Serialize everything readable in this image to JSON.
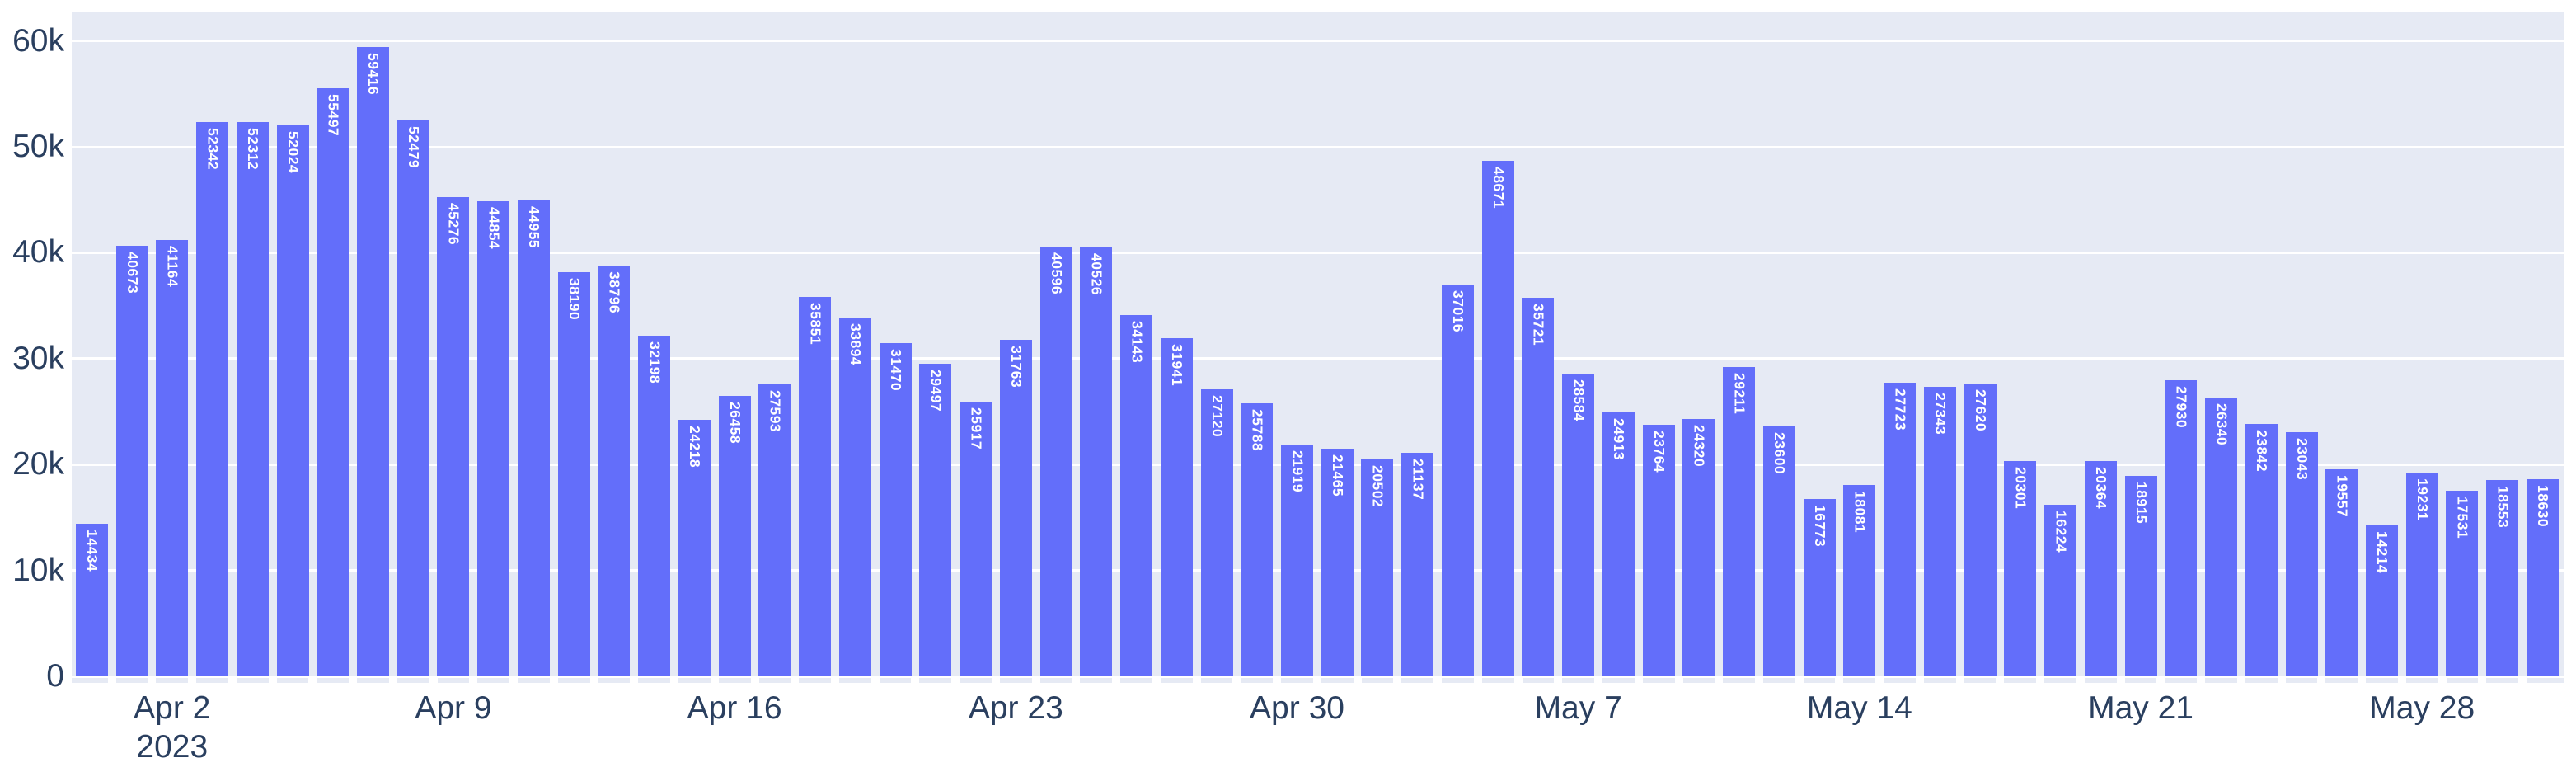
{
  "chart_data": {
    "type": "bar",
    "title": "",
    "xlabel": "",
    "ylabel": "",
    "grid": true,
    "legend": "none",
    "ylim": [
      0,
      62650
    ],
    "colors": {
      "bar_fill": "#636EFA",
      "plot_background": "#E6EAF4",
      "gridline": "#FFFFFF",
      "axis_text": "#2A3F5F",
      "bar_label_text": "#FFFFFF",
      "outer_background": "#FFFFFF"
    },
    "x": [
      "2023-03-31",
      "2023-04-01",
      "2023-04-02",
      "2023-04-03",
      "2023-04-04",
      "2023-04-05",
      "2023-04-06",
      "2023-04-07",
      "2023-04-08",
      "2023-04-09",
      "2023-04-10",
      "2023-04-11",
      "2023-04-12",
      "2023-04-13",
      "2023-04-14",
      "2023-04-15",
      "2023-04-16",
      "2023-04-17",
      "2023-04-18",
      "2023-04-19",
      "2023-04-20",
      "2023-04-21",
      "2023-04-22",
      "2023-04-23",
      "2023-04-24",
      "2023-04-25",
      "2023-04-26",
      "2023-04-27",
      "2023-04-28",
      "2023-04-29",
      "2023-04-30",
      "2023-05-01",
      "2023-05-02",
      "2023-05-03",
      "2023-05-04",
      "2023-05-05",
      "2023-05-06",
      "2023-05-07",
      "2023-05-08",
      "2023-05-09",
      "2023-05-10",
      "2023-05-11",
      "2023-05-12",
      "2023-05-13",
      "2023-05-14",
      "2023-05-15",
      "2023-05-16",
      "2023-05-17",
      "2023-05-18",
      "2023-05-19",
      "2023-05-20",
      "2023-05-21",
      "2023-05-22",
      "2023-05-23",
      "2023-05-24",
      "2023-05-25",
      "2023-05-26",
      "2023-05-27",
      "2023-05-28",
      "2023-05-29",
      "2023-05-30",
      "2023-05-31"
    ],
    "values": [
      14434,
      40673,
      41164,
      52342,
      52312,
      52024,
      55497,
      59416,
      52479,
      45276,
      44854,
      44955,
      38190,
      38796,
      32198,
      24218,
      26458,
      27593,
      35851,
      33894,
      31470,
      29497,
      25917,
      31763,
      40596,
      40526,
      34143,
      31941,
      27120,
      25788,
      21919,
      21465,
      20502,
      21137,
      37016,
      48671,
      35721,
      28584,
      24913,
      23764,
      24320,
      29211,
      23600,
      16773,
      18081,
      27723,
      27343,
      27620,
      20301,
      16224,
      20364,
      18915,
      27930,
      26340,
      23842,
      23043,
      19557,
      14214,
      19231,
      17531,
      18553,
      18630
    ],
    "y_ticks": [
      {
        "value": 0,
        "label": "0"
      },
      {
        "value": 10000,
        "label": "10k"
      },
      {
        "value": 20000,
        "label": "20k"
      },
      {
        "value": 30000,
        "label": "30k"
      },
      {
        "value": 40000,
        "label": "40k"
      },
      {
        "value": 50000,
        "label": "50k"
      },
      {
        "value": 60000,
        "label": "60k"
      }
    ],
    "x_ticks": [
      {
        "index": 2,
        "label": "Apr 2",
        "sublabel": "2023"
      },
      {
        "index": 9,
        "label": "Apr 9"
      },
      {
        "index": 16,
        "label": "Apr 16"
      },
      {
        "index": 23,
        "label": "Apr 23"
      },
      {
        "index": 30,
        "label": "Apr 30"
      },
      {
        "index": 37,
        "label": "May 7"
      },
      {
        "index": 44,
        "label": "May 14"
      },
      {
        "index": 51,
        "label": "May 21"
      },
      {
        "index": 58,
        "label": "May 28"
      }
    ]
  }
}
